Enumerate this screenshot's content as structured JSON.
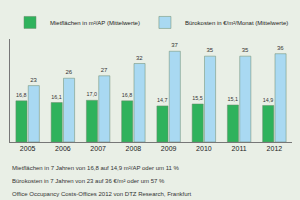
{
  "chart_data": {
    "type": "bar",
    "categories": [
      "2005",
      "2006",
      "2007",
      "2008",
      "2009",
      "2010",
      "2011",
      "2012"
    ],
    "series": [
      {
        "name": "Mietflächen in m²/AP (Mittelwerte)",
        "color": "#2fb25c",
        "values": [
          16.8,
          16.1,
          17.0,
          16.8,
          14.7,
          15.5,
          15.1,
          14.9
        ],
        "value_labels": [
          "16,8",
          "16,1",
          "17,0",
          "16,8",
          "14,7",
          "15,5",
          "15,1",
          "14,9"
        ]
      },
      {
        "name": "Bürokosten in €/m²/Monat (Mittelwerte)",
        "color": "#a9d9f2",
        "values": [
          23,
          26,
          27,
          32,
          37,
          35,
          35,
          36
        ]
      }
    ],
    "ylim": [
      0,
      42
    ],
    "tick_labels": "x",
    "data_labels": true,
    "legend": "top",
    "annotations": [
      "Mietflächen in 7 Jahren von 16,8 auf 14,9 m²/AP oder um 11 %",
      "Bürokosten in 7 Jahren von 23 auf 36 €/m² oder um 57 %",
      "Office Occupancy Costs-Offices 2012 von DTZ Research, Frankfurt"
    ]
  }
}
